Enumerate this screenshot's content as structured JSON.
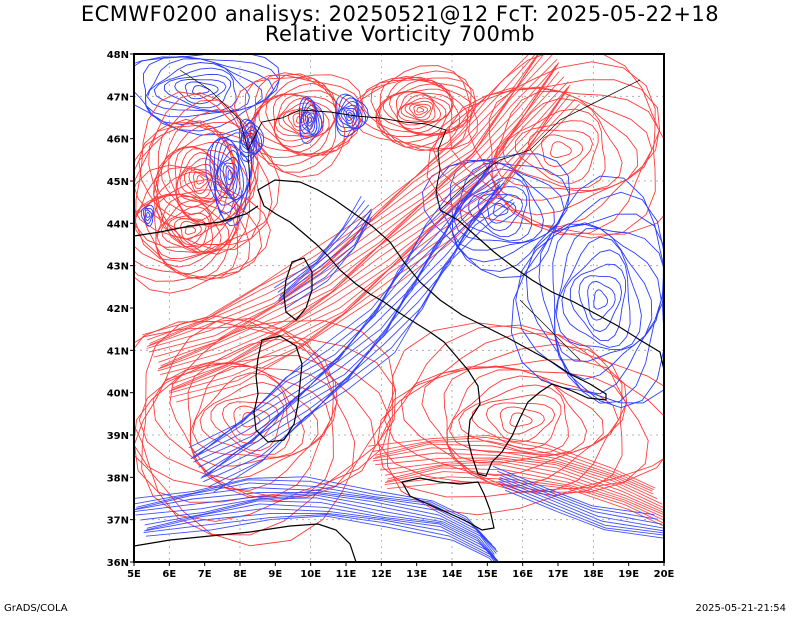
{
  "title": {
    "line1": "ECMWF0200 analisys: 20250521@12 FcT: 2025-05-22+18",
    "line2": "Relative Vorticity 700mb"
  },
  "map": {
    "lon_labels": [
      "5E",
      "6E",
      "7E",
      "8E",
      "9E",
      "10E",
      "11E",
      "12E",
      "13E",
      "14E",
      "15E",
      "16E",
      "17E",
      "18E",
      "19E",
      "20E"
    ],
    "lat_labels": [
      "48N",
      "47N",
      "46N",
      "45N",
      "44N",
      "43N",
      "42N",
      "41N",
      "40N",
      "39N",
      "38N",
      "37N",
      "36N"
    ],
    "lon_range": [
      5,
      20
    ],
    "lat_range": [
      36,
      48
    ],
    "colors": {
      "positive": "#ff3b3b",
      "negative": "#2a3cff",
      "coast": "#000000",
      "grid": "#a0a0a0"
    }
  },
  "footer": {
    "left": "GrADS/COLA",
    "right": "2025-05-21-21:54"
  }
}
